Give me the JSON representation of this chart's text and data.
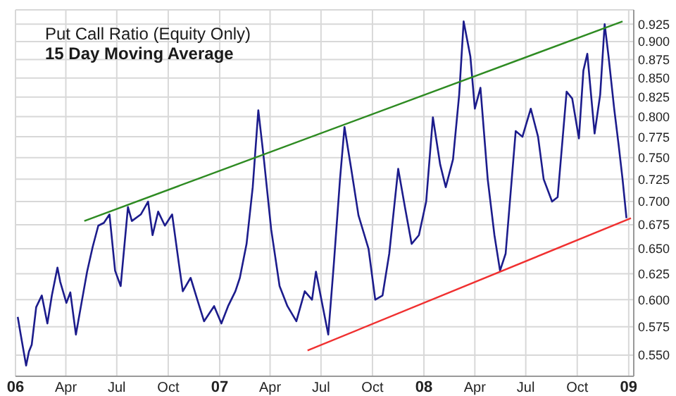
{
  "chart_data": {
    "type": "line",
    "title": "Put Call Ratio (Equity Only)",
    "subtitle": "15 Day Moving Average",
    "log": true,
    "grid": true,
    "legend": false,
    "marker": "none",
    "line_style": "solid",
    "xlim": [
      "2006-01-01",
      "2009-01-10"
    ],
    "xticks": [
      {
        "value": "2006-01-01",
        "label": "06"
      },
      {
        "value": "2006-04-01",
        "label": "Apr"
      },
      {
        "value": "2006-07-01",
        "label": "Jul"
      },
      {
        "value": "2006-10-01",
        "label": "Oct"
      },
      {
        "value": "2007-01-01",
        "label": "07"
      },
      {
        "value": "2007-04-01",
        "label": "Apr"
      },
      {
        "value": "2007-07-01",
        "label": "Jul"
      },
      {
        "value": "2007-10-01",
        "label": "Oct"
      },
      {
        "value": "2008-01-01",
        "label": "08"
      },
      {
        "value": "2008-04-01",
        "label": "Apr"
      },
      {
        "value": "2008-07-01",
        "label": "Jul"
      },
      {
        "value": "2008-10-01",
        "label": "Oct"
      },
      {
        "value": "2009-01-01",
        "label": "09"
      }
    ],
    "ylim": [
      0.532,
      0.946
    ],
    "yticks": [
      {
        "value": 0.55,
        "label": "0.550"
      },
      0.575,
      {
        "value": 0.6,
        "label": "0.600"
      },
      0.625,
      {
        "value": 0.65,
        "label": "0.650"
      },
      0.675,
      {
        "value": 0.7,
        "label": "0.700"
      },
      0.725,
      {
        "value": 0.75,
        "label": "0.750"
      },
      0.775,
      {
        "value": 0.8,
        "label": "0.800"
      },
      0.825,
      {
        "value": 0.85,
        "label": "0.850"
      },
      0.875,
      {
        "value": 0.9,
        "label": "0.900"
      },
      0.925
    ],
    "series": [
      {
        "type": "line",
        "color": "#1c1c8c",
        "x": [
          "2006-01-05",
          "2006-01-10",
          "2006-01-20",
          "2006-01-25",
          "2006-01-30",
          "2006-02-07",
          "2006-02-17",
          "2006-02-27",
          "2006-03-07",
          "2006-03-17",
          "2006-03-22",
          "2006-04-02",
          "2006-04-09",
          "2006-04-19",
          "2006-04-29",
          "2006-05-09",
          "2006-05-19",
          "2006-05-29",
          "2006-06-08",
          "2006-06-18",
          "2006-06-28",
          "2006-07-08",
          "2006-07-21",
          "2006-07-28",
          "2006-08-13",
          "2006-08-26",
          "2006-09-03",
          "2006-09-13",
          "2006-09-25",
          "2006-10-08",
          "2006-10-20",
          "2006-10-27",
          "2006-11-10",
          "2006-11-22",
          "2006-12-04",
          "2006-12-22",
          "2007-01-04",
          "2007-01-16",
          "2007-01-29",
          "2007-02-06",
          "2007-02-18",
          "2007-03-01",
          "2007-03-11",
          "2007-03-21",
          "2007-04-03",
          "2007-04-18",
          "2007-05-02",
          "2007-05-18",
          "2007-06-02",
          "2007-06-15",
          "2007-06-22",
          "2007-07-04",
          "2007-07-14",
          "2007-07-24",
          "2007-08-04",
          "2007-08-12",
          "2007-08-24",
          "2007-09-06",
          "2007-09-24",
          "2007-10-06",
          "2007-10-19",
          "2007-10-31",
          "2007-11-16",
          "2007-11-28",
          "2007-12-10",
          "2007-12-23",
          "2008-01-05",
          "2008-01-17",
          "2008-01-30",
          "2008-02-09",
          "2008-02-22",
          "2008-03-04",
          "2008-03-12",
          "2008-03-24",
          "2008-04-01",
          "2008-04-11",
          "2008-04-24",
          "2008-05-06",
          "2008-05-16",
          "2008-05-26",
          "2008-06-13",
          "2008-06-25",
          "2008-07-10",
          "2008-07-23",
          "2008-08-02",
          "2008-08-17",
          "2008-08-27",
          "2008-09-12",
          "2008-09-22",
          "2008-10-04",
          "2008-10-12",
          "2008-10-19",
          "2008-11-01",
          "2008-11-11",
          "2008-11-19",
          "2008-11-26",
          "2008-12-06",
          "2008-12-14",
          "2008-12-21",
          "2008-12-28"
        ],
        "values": [
          0.584,
          0.569,
          0.541,
          0.553,
          0.559,
          0.593,
          0.604,
          0.578,
          0.604,
          0.631,
          0.617,
          0.597,
          0.607,
          0.568,
          0.597,
          0.627,
          0.652,
          0.674,
          0.677,
          0.686,
          0.628,
          0.613,
          0.694,
          0.679,
          0.686,
          0.7,
          0.664,
          0.689,
          0.674,
          0.686,
          0.635,
          0.608,
          0.621,
          0.6,
          0.58,
          0.594,
          0.578,
          0.594,
          0.608,
          0.621,
          0.655,
          0.716,
          0.808,
          0.748,
          0.67,
          0.613,
          0.594,
          0.58,
          0.608,
          0.6,
          0.627,
          0.594,
          0.568,
          0.635,
          0.725,
          0.787,
          0.737,
          0.685,
          0.65,
          0.6,
          0.604,
          0.645,
          0.737,
          0.694,
          0.655,
          0.664,
          0.7,
          0.799,
          0.742,
          0.716,
          0.748,
          0.828,
          0.929,
          0.879,
          0.81,
          0.837,
          0.725,
          0.664,
          0.628,
          0.645,
          0.782,
          0.775,
          0.81,
          0.775,
          0.725,
          0.7,
          0.705,
          0.832,
          0.823,
          0.773,
          0.86,
          0.883,
          0.779,
          0.828,
          0.925,
          0.879,
          0.81,
          0.765,
          0.725,
          0.682
        ]
      },
      {
        "type": "line",
        "color": "#2e8b22",
        "x": [
          "2006-05-04",
          "2008-12-21"
        ],
        "values": [
          0.679,
          0.929
        ]
      },
      {
        "type": "line",
        "color": "#f03030",
        "x": [
          "2007-06-07",
          "2009-01-05"
        ],
        "values": [
          0.554,
          0.682
        ]
      }
    ]
  }
}
